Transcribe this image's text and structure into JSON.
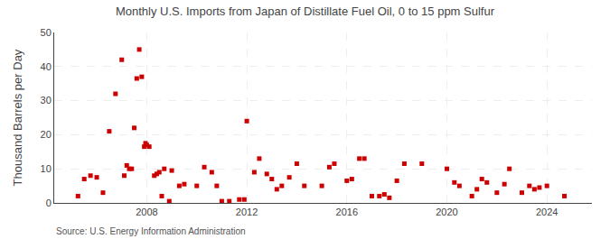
{
  "chart_data": {
    "type": "scatter",
    "title": "Monthly U.S. Imports from Japan of Distillate Fuel Oil, 0 to 15 ppm Sulfur",
    "ylabel": "Thousand Barrels per Day",
    "annotations": [
      "Source: U.S. Energy Information Administration"
    ],
    "color": "#cc0000",
    "marker": "square",
    "grid": true,
    "xlim": [
      2004.3,
      2025.8
    ],
    "xticks": [
      2008,
      2012,
      2016,
      2020,
      2024
    ],
    "ylim": [
      0,
      50
    ],
    "yticks": [
      0,
      10,
      20,
      30,
      40,
      50
    ],
    "x": [
      2005.25,
      2005.5,
      2005.75,
      2006.0,
      2006.25,
      2006.5,
      2006.75,
      2007.0,
      2007.1,
      2007.2,
      2007.3,
      2007.4,
      2007.5,
      2007.6,
      2007.7,
      2007.8,
      2007.9,
      2007.95,
      2008.0,
      2008.1,
      2008.3,
      2008.4,
      2008.5,
      2008.6,
      2008.7,
      2008.9,
      2009.0,
      2009.3,
      2009.5,
      2010.0,
      2010.3,
      2010.6,
      2010.8,
      2011.0,
      2011.3,
      2011.7,
      2011.9,
      2012.0,
      2012.3,
      2012.5,
      2012.8,
      2013.0,
      2013.2,
      2013.4,
      2013.7,
      2014.0,
      2014.3,
      2015.0,
      2015.3,
      2015.5,
      2016.0,
      2016.2,
      2016.5,
      2016.7,
      2017.0,
      2017.3,
      2017.5,
      2017.7,
      2018.0,
      2018.3,
      2019.0,
      2020.0,
      2020.3,
      2020.5,
      2021.0,
      2021.2,
      2021.4,
      2021.6,
      2022.0,
      2022.3,
      2022.5,
      2023.0,
      2023.3,
      2023.5,
      2023.7,
      2024.0,
      2024.7
    ],
    "values": [
      2.0,
      7.0,
      8.0,
      7.5,
      3.0,
      21.0,
      32.0,
      42.0,
      8.0,
      11.0,
      10.0,
      10.0,
      22.0,
      36.5,
      45.0,
      37.0,
      16.5,
      17.5,
      17.0,
      16.5,
      8.0,
      8.5,
      9.0,
      2.0,
      10.0,
      0.5,
      9.5,
      5.0,
      5.5,
      5.0,
      10.5,
      9.0,
      5.0,
      0.5,
      0.5,
      1.0,
      1.0,
      24.0,
      9.0,
      13.0,
      8.5,
      7.0,
      4.0,
      5.0,
      7.5,
      11.5,
      5.0,
      5.0,
      10.5,
      11.5,
      6.5,
      7.0,
      13.0,
      13.0,
      2.0,
      2.0,
      2.5,
      1.5,
      6.5,
      11.5,
      11.5,
      10.0,
      6.0,
      5.0,
      2.0,
      4.0,
      7.0,
      6.0,
      3.0,
      5.5,
      10.0,
      3.0,
      5.0,
      4.0,
      4.5,
      5.0,
      2.0
    ]
  }
}
